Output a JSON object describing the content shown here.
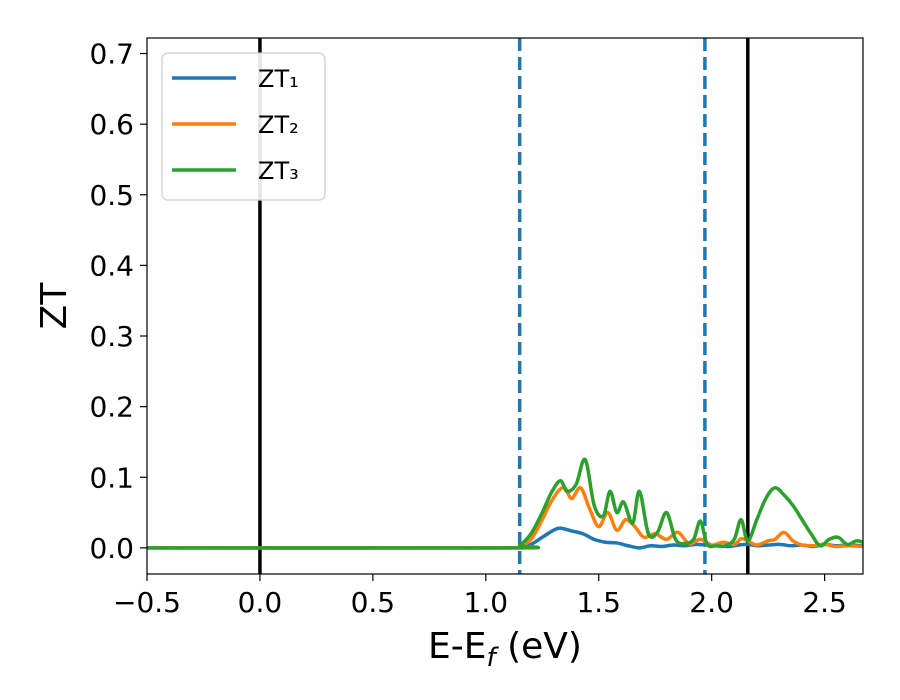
{
  "chart_data": {
    "type": "line",
    "xlabel": "E-E_f (eV)",
    "ylabel": "ZT",
    "xlim": [
      -0.5,
      2.67
    ],
    "ylim": [
      -0.037,
      0.722
    ],
    "xticks": [
      -0.5,
      0.0,
      0.5,
      1.0,
      1.5,
      2.0,
      2.5
    ],
    "xtick_labels": [
      "−0.5",
      "0.0",
      "0.5",
      "1.0",
      "1.5",
      "2.0",
      "2.5"
    ],
    "yticks": [
      0.0,
      0.1,
      0.2,
      0.3,
      0.4,
      0.5,
      0.6,
      0.7
    ],
    "ytick_labels": [
      "0.0",
      "0.1",
      "0.2",
      "0.3",
      "0.4",
      "0.5",
      "0.6",
      "0.7"
    ],
    "grid": false,
    "legend_position": "top-left",
    "vlines": [
      {
        "x": 0.0,
        "style": "solid",
        "color": "#000000"
      },
      {
        "x": 1.15,
        "style": "dashed",
        "color": "#1f77b4"
      },
      {
        "x": 1.97,
        "style": "dashed",
        "color": "#1f77b4"
      },
      {
        "x": 2.16,
        "style": "solid",
        "color": "#000000"
      }
    ],
    "series": [
      {
        "name": "ZT₁",
        "color": "#1f77b4",
        "x": [
          -0.5,
          1.1,
          1.15,
          1.2,
          1.25,
          1.3,
          1.33,
          1.38,
          1.43,
          1.48,
          1.53,
          1.58,
          1.63,
          1.68,
          1.73,
          1.78,
          1.83,
          1.88,
          1.93,
          1.97,
          2.02,
          2.07,
          2.12,
          2.16,
          2.2,
          2.25,
          2.3,
          2.35,
          2.4,
          2.45,
          2.5,
          2.55,
          2.6,
          2.67
        ],
        "y": [
          0.0,
          0.0,
          0.001,
          0.005,
          0.015,
          0.025,
          0.028,
          0.024,
          0.02,
          0.012,
          0.008,
          0.007,
          0.003,
          0.0,
          0.003,
          0.002,
          0.004,
          0.003,
          0.005,
          0.004,
          0.003,
          0.002,
          0.004,
          0.005,
          0.003,
          0.004,
          0.005,
          0.003,
          0.004,
          0.002,
          0.005,
          0.003,
          0.004,
          0.003
        ]
      },
      {
        "name": "ZT₂",
        "color": "#ff7f0e",
        "x": [
          -0.5,
          1.1,
          1.15,
          1.2,
          1.25,
          1.28,
          1.32,
          1.35,
          1.38,
          1.42,
          1.46,
          1.5,
          1.54,
          1.58,
          1.62,
          1.66,
          1.7,
          1.75,
          1.8,
          1.85,
          1.9,
          1.95,
          2.0,
          2.05,
          2.1,
          2.13,
          2.16,
          2.2,
          2.25,
          2.28,
          2.32,
          2.36,
          2.4,
          2.45,
          2.5,
          2.55,
          2.6,
          2.67
        ],
        "y": [
          0.0,
          0.0,
          0.002,
          0.012,
          0.04,
          0.06,
          0.08,
          0.085,
          0.07,
          0.085,
          0.055,
          0.03,
          0.05,
          0.025,
          0.04,
          0.03,
          0.015,
          0.02,
          0.012,
          0.022,
          0.006,
          0.012,
          0.004,
          0.008,
          0.005,
          0.013,
          0.01,
          0.004,
          0.01,
          0.012,
          0.022,
          0.01,
          0.004,
          0.003,
          0.005,
          0.002,
          0.003,
          0.002
        ]
      },
      {
        "name": "ZT₃",
        "color": "#2ca02c",
        "x": [
          -0.5,
          1.1,
          1.15,
          1.2,
          1.25,
          1.29,
          1.33,
          1.36,
          1.4,
          1.44,
          1.48,
          1.52,
          1.55,
          1.58,
          1.61,
          1.65,
          1.68,
          1.72,
          1.76,
          1.8,
          1.84,
          1.88,
          1.92,
          1.95,
          1.98,
          2.02,
          2.06,
          2.1,
          2.13,
          2.16,
          2.2,
          2.24,
          2.28,
          2.32,
          2.36,
          2.4,
          2.44,
          2.48,
          2.52,
          2.56,
          2.6,
          2.64,
          2.67
        ],
        "y": [
          0.0,
          0.0,
          0.004,
          0.02,
          0.05,
          0.078,
          0.095,
          0.08,
          0.09,
          0.125,
          0.06,
          0.045,
          0.08,
          0.05,
          0.065,
          0.035,
          0.08,
          0.02,
          0.022,
          0.05,
          0.012,
          0.006,
          0.012,
          0.038,
          0.005,
          0.003,
          0.003,
          0.012,
          0.04,
          0.01,
          0.04,
          0.07,
          0.085,
          0.075,
          0.06,
          0.04,
          0.02,
          0.003,
          0.012,
          0.015,
          0.005,
          0.01,
          0.008
        ]
      }
    ]
  }
}
